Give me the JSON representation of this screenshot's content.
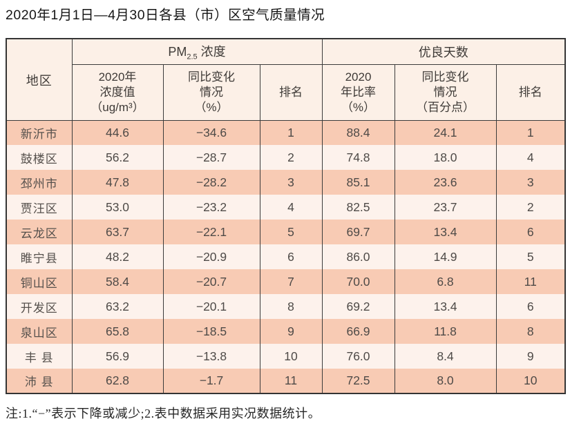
{
  "title": "2020年1月1日—4月30日各县（市）区空气质量情况",
  "table": {
    "region_header": "地区",
    "group_pm": {
      "prefix": "PM",
      "sub": "2.5",
      "suffix": " 浓度"
    },
    "group_good_days": "优良天数",
    "sub_headers": [
      "2020年\n浓度值\n（ug/m³）",
      "同比变化\n情况\n（%）",
      "排名",
      "2020\n年比率\n（%）",
      "同比变化\n情况\n（百分点）",
      "排名"
    ],
    "rows": [
      {
        "region": "新沂市",
        "pm_value": "44.6",
        "pm_change": "−34.6",
        "pm_rank": "1",
        "good_rate": "88.4",
        "good_change": "24.1",
        "good_rank": "1"
      },
      {
        "region": "鼓楼区",
        "pm_value": "56.2",
        "pm_change": "−28.7",
        "pm_rank": "2",
        "good_rate": "74.8",
        "good_change": "18.0",
        "good_rank": "4"
      },
      {
        "region": "邳州市",
        "pm_value": "47.8",
        "pm_change": "−28.2",
        "pm_rank": "3",
        "good_rate": "85.1",
        "good_change": "23.6",
        "good_rank": "3"
      },
      {
        "region": "贾汪区",
        "pm_value": "53.0",
        "pm_change": "−23.2",
        "pm_rank": "4",
        "good_rate": "82.5",
        "good_change": "23.7",
        "good_rank": "2"
      },
      {
        "region": "云龙区",
        "pm_value": "63.7",
        "pm_change": "−22.1",
        "pm_rank": "5",
        "good_rate": "69.7",
        "good_change": "13.4",
        "good_rank": "6"
      },
      {
        "region": "睢宁县",
        "pm_value": "48.2",
        "pm_change": "−20.9",
        "pm_rank": "6",
        "good_rate": "86.0",
        "good_change": "14.9",
        "good_rank": "5"
      },
      {
        "region": "铜山区",
        "pm_value": "58.4",
        "pm_change": "−20.7",
        "pm_rank": "7",
        "good_rate": "70.0",
        "good_change": "6.8",
        "good_rank": "11"
      },
      {
        "region": "开发区",
        "pm_value": "63.2",
        "pm_change": "−20.1",
        "pm_rank": "8",
        "good_rate": "69.2",
        "good_change": "13.4",
        "good_rank": "6"
      },
      {
        "region": "泉山区",
        "pm_value": "65.8",
        "pm_change": "−18.5",
        "pm_rank": "9",
        "good_rate": "66.9",
        "good_change": "11.8",
        "good_rank": "8"
      },
      {
        "region": "丰 县",
        "pm_value": "56.9",
        "pm_change": "−13.8",
        "pm_rank": "10",
        "good_rate": "76.0",
        "good_change": "8.4",
        "good_rank": "9"
      },
      {
        "region": "沛 县",
        "pm_value": "62.8",
        "pm_change": "−1.7",
        "pm_rank": "11",
        "good_rate": "72.5",
        "good_change": "8.0",
        "good_rank": "10"
      }
    ]
  },
  "note": "注:1.“−”表示下降或减少;2.表中数据采用实况数据统计。",
  "colors": {
    "stripe_odd": "#f8cbb4",
    "stripe_even": "#fdf2ec",
    "header_bg": "#fcf0e7",
    "border": "#3a3a3a"
  }
}
